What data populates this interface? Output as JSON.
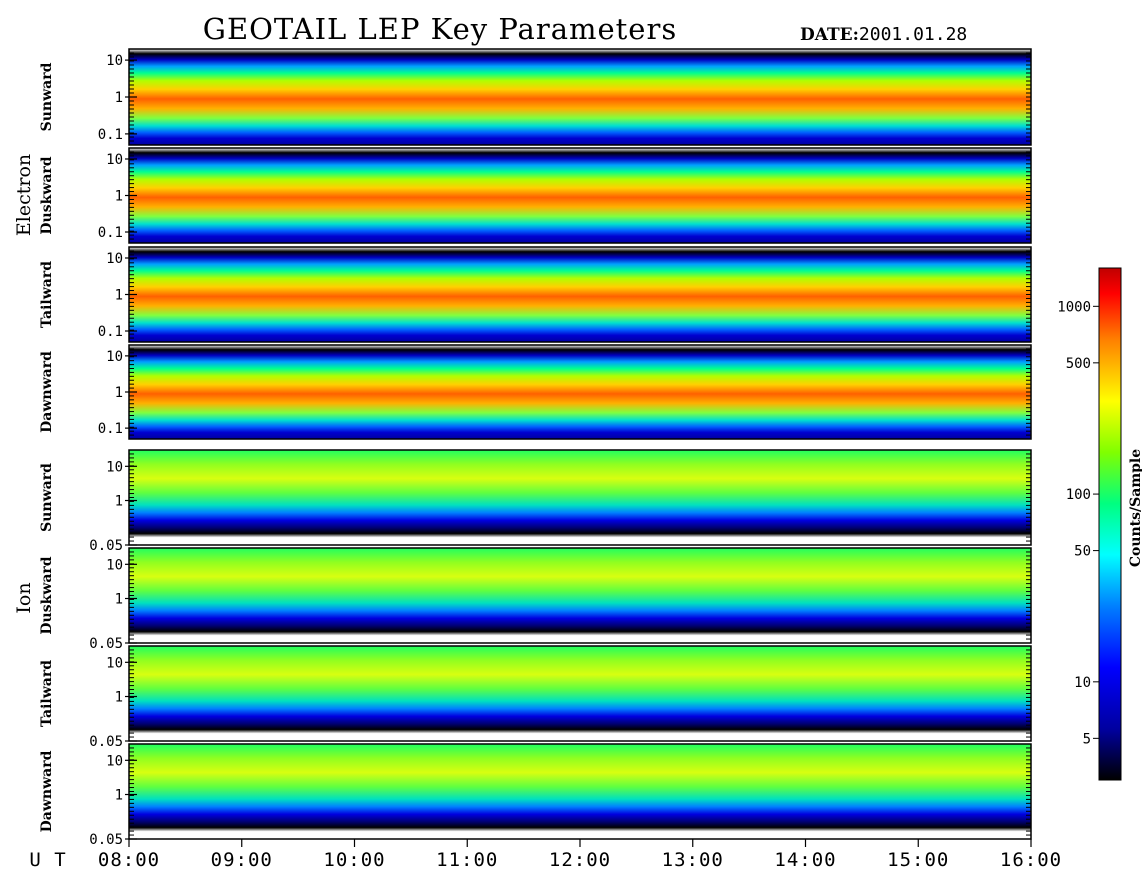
{
  "header": {
    "title": "GEOTAIL LEP Key Parameters",
    "date_label": "DATE:",
    "date_value": "2001.01.28"
  },
  "chart_data": {
    "type": "heatmap",
    "title": "GEOTAIL LEP Key Parameters",
    "x_axis": {
      "label": "U T",
      "range": [
        "08:00",
        "16:00"
      ],
      "ticks": [
        "08:00",
        "09:00",
        "10:00",
        "11:00",
        "12:00",
        "13:00",
        "14:00",
        "15:00",
        "16:00"
      ]
    },
    "groups": [
      {
        "name": "Electron",
        "ylog": true,
        "yrange": [
          0.05,
          20
        ],
        "yticks": [
          "10",
          "1",
          "0.1"
        ],
        "panels": [
          {
            "name": "Sunward"
          },
          {
            "name": "Duskward"
          },
          {
            "name": "Tailward"
          },
          {
            "name": "Dawnward"
          }
        ]
      },
      {
        "name": "Ion",
        "ylog": true,
        "yrange": [
          0.05,
          30
        ],
        "yticks": [
          "10",
          "1",
          "0.05"
        ],
        "panels": [
          {
            "name": "Sunward"
          },
          {
            "name": "Duskward"
          },
          {
            "name": "Tailward"
          },
          {
            "name": "Dawnward"
          }
        ]
      }
    ],
    "colorbar": {
      "label": "Counts/Sample",
      "scale": "log",
      "range": [
        3,
        1600
      ],
      "ticks": [
        "1000",
        "500",
        "100",
        "50",
        "10",
        "5"
      ],
      "colormap": [
        "#000000",
        "#0000a0",
        "#0000ff",
        "#0080ff",
        "#00ffff",
        "#00ff80",
        "#80ff00",
        "#ffff00",
        "#ff8000",
        "#ff0000",
        "#c00000"
      ]
    }
  }
}
